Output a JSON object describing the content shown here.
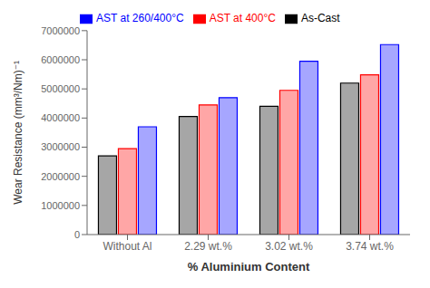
{
  "chart_data": {
    "type": "bar",
    "categories": [
      "Without Al",
      "2.29 wt.%",
      "3.02 wt.%",
      "3.74 wt.%"
    ],
    "series": [
      {
        "name": "As-Cast",
        "color": "black",
        "values": [
          2700000,
          4050000,
          4400000,
          5200000
        ]
      },
      {
        "name": "AST at 400°C",
        "color": "red",
        "values": [
          2950000,
          4450000,
          4950000,
          5480000
        ]
      },
      {
        "name": "AST at 260/400°C",
        "color": "blue",
        "values": [
          3700000,
          4700000,
          5950000,
          6520000
        ]
      }
    ],
    "xlabel": "% Aluminium Content",
    "ylabel": "Wear Resistance (mm³/Nm)⁻¹",
    "ylim": [
      0,
      7000000
    ],
    "yticks": [
      0,
      1000000,
      2000000,
      3000000,
      4000000,
      5000000,
      6000000,
      7000000
    ],
    "legend": "upper left",
    "grid": false
  }
}
